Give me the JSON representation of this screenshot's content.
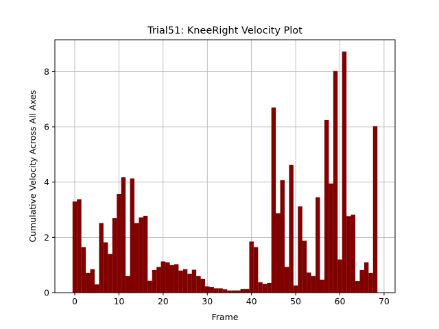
{
  "chart_data": {
    "type": "bar",
    "title": "Trial51: KneeRight Velocity Plot",
    "xlabel": "Frame",
    "ylabel": "Cumulative Velocity Across All Axes",
    "xlim": [
      -4.5,
      72.5
    ],
    "ylim": [
      0,
      9.15
    ],
    "xticks": [
      0,
      10,
      20,
      30,
      40,
      50,
      60,
      70
    ],
    "yticks": [
      0,
      2,
      4,
      6,
      8
    ],
    "grid": true,
    "bar_color": "#800000",
    "bar_width": 1.0,
    "x": [
      0,
      1,
      2,
      3,
      4,
      5,
      6,
      7,
      8,
      9,
      10,
      11,
      12,
      13,
      14,
      15,
      16,
      17,
      18,
      19,
      20,
      21,
      22,
      23,
      24,
      25,
      26,
      27,
      28,
      29,
      30,
      31,
      32,
      33,
      34,
      35,
      36,
      37,
      38,
      39,
      40,
      41,
      42,
      43,
      44,
      45,
      46,
      47,
      48,
      49,
      50,
      51,
      52,
      53,
      54,
      55,
      56,
      57,
      58,
      59,
      60,
      61,
      62,
      63,
      64,
      65,
      66,
      67,
      68
    ],
    "values": [
      3.3,
      3.38,
      1.65,
      0.72,
      0.85,
      0.3,
      2.52,
      1.82,
      1.4,
      2.7,
      3.57,
      4.18,
      0.6,
      4.13,
      2.52,
      2.72,
      2.78,
      0.43,
      0.82,
      0.93,
      1.13,
      1.1,
      1.0,
      1.03,
      0.8,
      0.85,
      0.68,
      0.83,
      0.6,
      0.5,
      0.23,
      0.2,
      0.16,
      0.16,
      0.12,
      0.08,
      0.08,
      0.08,
      0.13,
      0.13,
      1.85,
      1.65,
      0.38,
      0.32,
      0.35,
      6.7,
      2.87,
      4.07,
      0.93,
      4.62,
      0.26,
      3.12,
      1.88,
      0.73,
      0.6,
      3.45,
      0.47,
      6.25,
      3.95,
      8.02,
      1.2,
      8.72,
      2.77,
      2.82,
      0.42,
      0.82,
      1.1,
      0.72,
      6.02
    ]
  }
}
